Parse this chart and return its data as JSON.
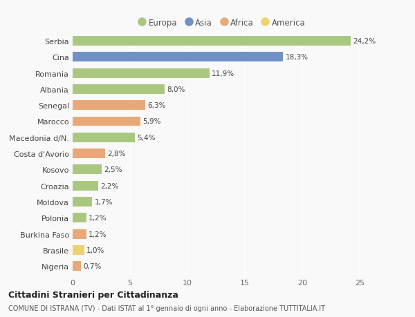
{
  "countries": [
    "Serbia",
    "Cina",
    "Romania",
    "Albania",
    "Senegal",
    "Marocco",
    "Macedonia d/N.",
    "Costa d'Avorio",
    "Kosovo",
    "Croazia",
    "Moldova",
    "Polonia",
    "Burkina Faso",
    "Brasile",
    "Nigeria"
  ],
  "values": [
    24.2,
    18.3,
    11.9,
    8.0,
    6.3,
    5.9,
    5.4,
    2.8,
    2.5,
    2.2,
    1.7,
    1.2,
    1.2,
    1.0,
    0.7
  ],
  "labels": [
    "24,2%",
    "18,3%",
    "11,9%",
    "8,0%",
    "6,3%",
    "5,9%",
    "5,4%",
    "2,8%",
    "2,5%",
    "2,2%",
    "1,7%",
    "1,2%",
    "1,2%",
    "1,0%",
    "0,7%"
  ],
  "continents": [
    "Europa",
    "Asia",
    "Europa",
    "Europa",
    "Africa",
    "Africa",
    "Europa",
    "Africa",
    "Europa",
    "Europa",
    "Europa",
    "Europa",
    "Africa",
    "America",
    "Africa"
  ],
  "continent_colors": {
    "Europa": "#a8c880",
    "Asia": "#7090c8",
    "Africa": "#e8a878",
    "America": "#f0d070"
  },
  "legend_order": [
    "Europa",
    "Asia",
    "Africa",
    "America"
  ],
  "xlim": [
    0,
    26
  ],
  "xticks": [
    0,
    5,
    10,
    15,
    20,
    25
  ],
  "title": "Cittadini Stranieri per Cittadinanza",
  "subtitle": "COMUNE DI ISTRANA (TV) - Dati ISTAT al 1° gennaio di ogni anno - Elaborazione TUTTITALIA.IT",
  "bg_color": "#f9f9f9",
  "grid_color": "#ffffff",
  "bar_height": 0.6,
  "label_fontsize": 7.5,
  "ytick_fontsize": 8.0,
  "xtick_fontsize": 8.0
}
